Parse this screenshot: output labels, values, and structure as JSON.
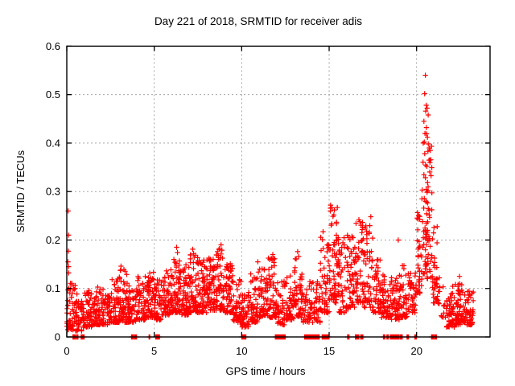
{
  "window": {
    "background": "#ffffff"
  },
  "chart_data": {
    "type": "scatter",
    "title": "Day 221 of 2018, SRMTID for receiver adis",
    "xlabel": "GPS time / hours",
    "ylabel": "SRMTID / TECUs",
    "xlim": [
      0,
      24.2
    ],
    "ylim": [
      0,
      0.6
    ],
    "grid": true,
    "legend": "none",
    "marker": "plus",
    "marker_color": "#ff0000",
    "axis_color": "#000000",
    "grid_color": "#9a9a9a",
    "xticks": [
      {
        "v": 0,
        "label": "0"
      },
      {
        "v": 5,
        "label": "5"
      },
      {
        "v": 10,
        "label": "10"
      },
      {
        "v": 15,
        "label": "15"
      },
      {
        "v": 20,
        "label": "20"
      }
    ],
    "yticks": [
      {
        "v": 0.0,
        "label": "0"
      },
      {
        "v": 0.1,
        "label": "0.1"
      },
      {
        "v": 0.2,
        "label": "0.2"
      },
      {
        "v": 0.3,
        "label": "0.3"
      },
      {
        "v": 0.4,
        "label": "0.4"
      },
      {
        "v": 0.5,
        "label": "0.5"
      },
      {
        "v": 0.6,
        "label": "0.6"
      }
    ],
    "seed": 20180221,
    "band_segments": [
      [
        0.0,
        0.5,
        55,
        0.015,
        0.115
      ],
      [
        0.5,
        1.0,
        48,
        0.012,
        0.09
      ],
      [
        1.0,
        1.5,
        52,
        0.02,
        0.1
      ],
      [
        1.5,
        2.0,
        55,
        0.025,
        0.105
      ],
      [
        2.0,
        2.5,
        55,
        0.025,
        0.1
      ],
      [
        2.5,
        3.0,
        55,
        0.03,
        0.12
      ],
      [
        3.0,
        3.5,
        58,
        0.03,
        0.14
      ],
      [
        3.5,
        4.0,
        52,
        0.03,
        0.11
      ],
      [
        4.0,
        4.5,
        55,
        0.035,
        0.125
      ],
      [
        4.5,
        5.0,
        58,
        0.04,
        0.135
      ],
      [
        5.0,
        5.5,
        55,
        0.035,
        0.12
      ],
      [
        5.5,
        6.0,
        58,
        0.045,
        0.14
      ],
      [
        6.0,
        6.5,
        62,
        0.05,
        0.16
      ],
      [
        6.5,
        7.0,
        60,
        0.045,
        0.15
      ],
      [
        7.0,
        7.5,
        62,
        0.05,
        0.17
      ],
      [
        7.5,
        8.0,
        62,
        0.05,
        0.16
      ],
      [
        8.0,
        8.5,
        62,
        0.055,
        0.165
      ],
      [
        8.5,
        9.0,
        64,
        0.055,
        0.185
      ],
      [
        9.0,
        9.5,
        58,
        0.05,
        0.155
      ],
      [
        9.5,
        10.0,
        52,
        0.03,
        0.12
      ],
      [
        10.0,
        10.5,
        48,
        0.02,
        0.095
      ],
      [
        10.5,
        11.0,
        52,
        0.03,
        0.135
      ],
      [
        11.0,
        11.5,
        56,
        0.04,
        0.145
      ],
      [
        11.5,
        12.0,
        56,
        0.04,
        0.165
      ],
      [
        12.0,
        12.5,
        42,
        0.025,
        0.115
      ],
      [
        12.5,
        13.0,
        48,
        0.035,
        0.13
      ],
      [
        13.0,
        13.5,
        52,
        0.04,
        0.17
      ],
      [
        13.5,
        14.0,
        42,
        0.03,
        0.12
      ],
      [
        14.0,
        14.5,
        38,
        0.03,
        0.115
      ],
      [
        14.5,
        15.0,
        52,
        0.05,
        0.23
      ],
      [
        15.0,
        15.5,
        58,
        0.07,
        0.27
      ],
      [
        15.5,
        16.0,
        52,
        0.05,
        0.21
      ],
      [
        16.0,
        16.5,
        55,
        0.06,
        0.21
      ],
      [
        16.5,
        17.0,
        56,
        0.07,
        0.24
      ],
      [
        17.0,
        17.5,
        50,
        0.06,
        0.245
      ],
      [
        17.5,
        18.0,
        48,
        0.05,
        0.16
      ],
      [
        18.0,
        18.5,
        48,
        0.04,
        0.13
      ],
      [
        18.5,
        19.0,
        48,
        0.035,
        0.125
      ],
      [
        19.0,
        19.5,
        48,
        0.04,
        0.15
      ],
      [
        19.5,
        20.0,
        42,
        0.05,
        0.135
      ],
      [
        20.0,
        20.3,
        35,
        0.09,
        0.27
      ],
      [
        20.3,
        20.6,
        45,
        0.13,
        0.46
      ],
      [
        20.6,
        20.9,
        42,
        0.12,
        0.4
      ],
      [
        20.9,
        21.2,
        32,
        0.07,
        0.24
      ],
      [
        21.2,
        21.7,
        16,
        0.04,
        0.12
      ],
      [
        21.7,
        22.2,
        55,
        0.02,
        0.105
      ],
      [
        22.2,
        22.7,
        58,
        0.025,
        0.11
      ],
      [
        22.7,
        23.25,
        58,
        0.025,
        0.095
      ]
    ],
    "outlier_points": [
      [
        0.08,
        0.26
      ],
      [
        0.1,
        0.21
      ],
      [
        0.09,
        0.177
      ],
      [
        0.07,
        0.155
      ],
      [
        0.1,
        0.145
      ],
      [
        0.11,
        0.132
      ],
      [
        3.1,
        0.146
      ],
      [
        6.28,
        0.185
      ],
      [
        6.33,
        0.174
      ],
      [
        7.2,
        0.181
      ],
      [
        7.25,
        0.172
      ],
      [
        8.82,
        0.19
      ],
      [
        8.87,
        0.179
      ],
      [
        10.92,
        0.155
      ],
      [
        11.78,
        0.17
      ],
      [
        11.83,
        0.162
      ],
      [
        13.2,
        0.176
      ],
      [
        13.26,
        0.166
      ],
      [
        15.08,
        0.272
      ],
      [
        15.3,
        0.262
      ],
      [
        16.1,
        0.205
      ],
      [
        16.7,
        0.242
      ],
      [
        17.38,
        0.248
      ],
      [
        18.95,
        0.2
      ],
      [
        20.5,
        0.54
      ],
      [
        20.46,
        0.502
      ],
      [
        20.55,
        0.478
      ],
      [
        20.6,
        0.472
      ],
      [
        20.52,
        0.466
      ],
      [
        20.66,
        0.458
      ],
      [
        20.42,
        0.445
      ],
      [
        20.56,
        0.432
      ],
      [
        20.48,
        0.42
      ],
      [
        20.62,
        0.412
      ],
      [
        20.44,
        0.402
      ],
      [
        20.72,
        0.39
      ],
      [
        21.3,
        0.122
      ],
      [
        22.45,
        0.125
      ]
    ],
    "zero_value_runs": [
      [
        0.35,
        0.5
      ],
      [
        0.55,
        0.65
      ],
      [
        0.82,
        1.0
      ],
      [
        3.7,
        3.82
      ],
      [
        3.88,
        4.0
      ],
      [
        4.7,
        4.76
      ],
      [
        5.08,
        5.3
      ],
      [
        10.0,
        10.25
      ],
      [
        11.92,
        12.5
      ],
      [
        13.6,
        14.45
      ],
      [
        14.6,
        15.0
      ],
      [
        16.05,
        16.15
      ],
      [
        16.5,
        16.7
      ],
      [
        16.8,
        16.95
      ],
      [
        18.1,
        18.2
      ],
      [
        18.3,
        18.4
      ],
      [
        18.5,
        19.0
      ],
      [
        19.05,
        19.2
      ],
      [
        19.45,
        19.55
      ],
      [
        19.9,
        20.0
      ],
      [
        20.85,
        21.0
      ],
      [
        21.05,
        21.15
      ]
    ]
  }
}
